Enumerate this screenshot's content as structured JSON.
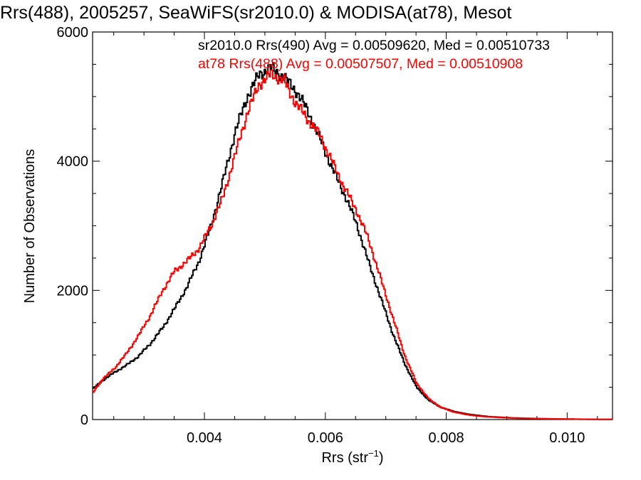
{
  "chart_data": {
    "type": "line",
    "title": "Rrs(488), 2005257, SeaWiFS(sr2010.0) & MODISA(at78), Mesot",
    "xlabel_main": "Rrs (str",
    "xlabel_sup": "−1",
    "xlabel_tail": ")",
    "ylabel": "Number of Observations",
    "xlim": [
      0.00215,
      0.01075
    ],
    "ylim": [
      0,
      6000
    ],
    "x_ticks": [
      0.004,
      0.006,
      0.008,
      0.01
    ],
    "x_tick_labels": [
      "0.004",
      "0.006",
      "0.008",
      "0.010"
    ],
    "y_ticks": [
      0,
      2000,
      4000,
      6000
    ],
    "y_tick_labels": [
      "0",
      "2000",
      "4000",
      "6000"
    ],
    "grid": false,
    "legend_position": "top-right",
    "series": [
      {
        "name": "sr2010.0 Rrs(490) Avg = 0.00509620, Med = 0.00510733",
        "color": "#000000",
        "points": [
          [
            0.00215,
            480
          ],
          [
            0.0023,
            600
          ],
          [
            0.0025,
            730
          ],
          [
            0.0027,
            840
          ],
          [
            0.0029,
            980
          ],
          [
            0.0031,
            1180
          ],
          [
            0.0033,
            1420
          ],
          [
            0.0035,
            1720
          ],
          [
            0.0037,
            2050
          ],
          [
            0.0039,
            2450
          ],
          [
            0.0041,
            3000
          ],
          [
            0.0043,
            3700
          ],
          [
            0.0045,
            4450
          ],
          [
            0.0047,
            5000
          ],
          [
            0.0049,
            5350
          ],
          [
            0.0051,
            5450
          ],
          [
            0.0053,
            5300
          ],
          [
            0.0055,
            5100
          ],
          [
            0.0057,
            4780
          ],
          [
            0.0059,
            4350
          ],
          [
            0.0061,
            3900
          ],
          [
            0.0063,
            3500
          ],
          [
            0.0065,
            3050
          ],
          [
            0.0067,
            2450
          ],
          [
            0.0069,
            1900
          ],
          [
            0.0071,
            1350
          ],
          [
            0.0073,
            870
          ],
          [
            0.0075,
            500
          ],
          [
            0.0077,
            300
          ],
          [
            0.0079,
            190
          ],
          [
            0.0081,
            130
          ],
          [
            0.0083,
            90
          ],
          [
            0.0085,
            65
          ],
          [
            0.0087,
            45
          ],
          [
            0.0089,
            35
          ],
          [
            0.0091,
            25
          ],
          [
            0.0093,
            20
          ],
          [
            0.0095,
            15
          ],
          [
            0.0097,
            12
          ],
          [
            0.0099,
            9
          ],
          [
            0.0101,
            7
          ],
          [
            0.0103,
            5
          ],
          [
            0.0105,
            4
          ],
          [
            0.01075,
            3
          ]
        ]
      },
      {
        "name": "at78 Rrs(488) Avg = 0.00507507, Med = 0.00510908",
        "color": "#ff0000",
        "points": [
          [
            0.00215,
            420
          ],
          [
            0.0023,
            620
          ],
          [
            0.0025,
            790
          ],
          [
            0.0027,
            1020
          ],
          [
            0.0029,
            1300
          ],
          [
            0.0031,
            1620
          ],
          [
            0.0033,
            2000
          ],
          [
            0.0035,
            2300
          ],
          [
            0.0037,
            2450
          ],
          [
            0.0039,
            2650
          ],
          [
            0.0041,
            3000
          ],
          [
            0.0043,
            3450
          ],
          [
            0.0045,
            4100
          ],
          [
            0.0047,
            4750
          ],
          [
            0.0049,
            5200
          ],
          [
            0.0051,
            5350
          ],
          [
            0.0053,
            5250
          ],
          [
            0.0055,
            4900
          ],
          [
            0.0057,
            4650
          ],
          [
            0.0059,
            4400
          ],
          [
            0.0061,
            4000
          ],
          [
            0.0063,
            3600
          ],
          [
            0.0065,
            3250
          ],
          [
            0.0067,
            2800
          ],
          [
            0.0069,
            2200
          ],
          [
            0.0071,
            1600
          ],
          [
            0.0073,
            1000
          ],
          [
            0.0075,
            560
          ],
          [
            0.0077,
            320
          ],
          [
            0.0079,
            190
          ],
          [
            0.0081,
            120
          ],
          [
            0.0083,
            80
          ],
          [
            0.0085,
            55
          ],
          [
            0.0087,
            40
          ],
          [
            0.0089,
            30
          ],
          [
            0.0091,
            22
          ],
          [
            0.0093,
            17
          ],
          [
            0.0095,
            13
          ],
          [
            0.0097,
            10
          ],
          [
            0.0099,
            8
          ],
          [
            0.0101,
            6
          ],
          [
            0.0103,
            4
          ],
          [
            0.0105,
            3
          ],
          [
            0.01075,
            2
          ]
        ]
      }
    ]
  }
}
